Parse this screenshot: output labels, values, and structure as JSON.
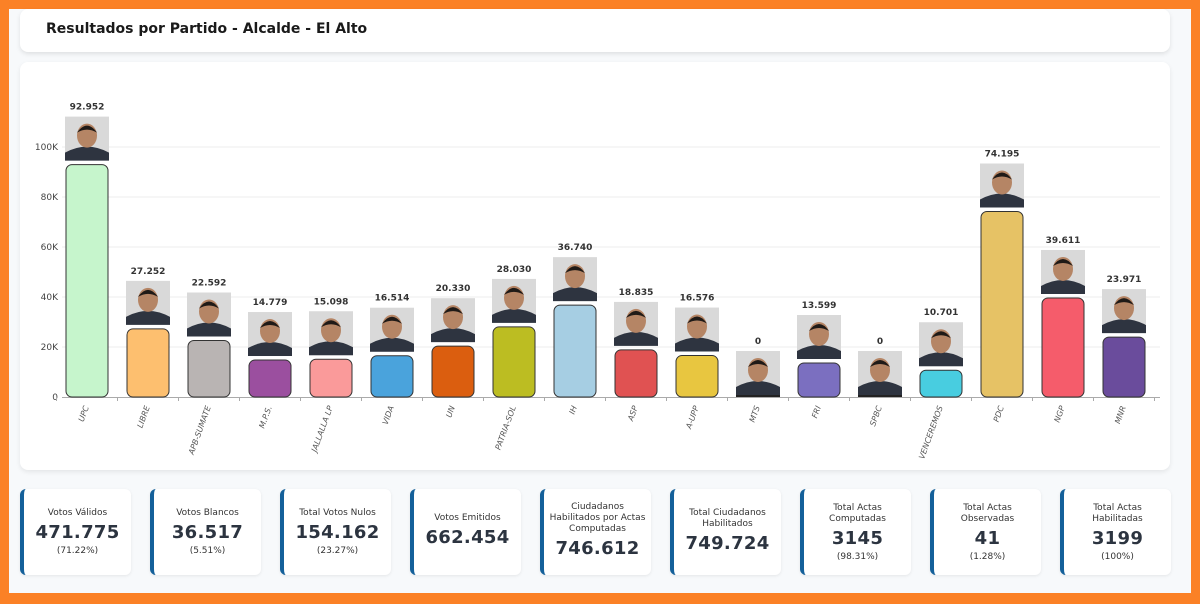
{
  "header": {
    "title": "Resultados por Partido - Alcalde - El Alto"
  },
  "colors": {
    "frame": "#fb8126",
    "stat_accent": "#14609a"
  },
  "chart_data": {
    "type": "bar",
    "title": "Resultados por Partido - Alcalde - El Alto",
    "xlabel": "",
    "ylabel": "",
    "ylim": [
      0,
      110000
    ],
    "yticks": [
      0,
      20000,
      40000,
      60000,
      80000,
      100000
    ],
    "ytick_labels": [
      "0",
      "20K",
      "40K",
      "60K",
      "80K",
      "100K"
    ],
    "grid": true,
    "legend": "none",
    "categories": [
      "UPC",
      "LIBRE",
      "APB-SUMATE",
      "M.P.S.",
      "JALLALLA LP",
      "VIDA",
      "UN",
      "PATRIA-SOL",
      "IH",
      "ASP",
      "A-UPP",
      "MTS",
      "FRI",
      "SPBC",
      "VENCEREMOS",
      "PDC",
      "NGP",
      "MNR"
    ],
    "values": [
      92952,
      27252,
      22592,
      14779,
      15098,
      16514,
      20330,
      28030,
      36740,
      18835,
      16576,
      0,
      13599,
      0,
      10701,
      74195,
      39611,
      23971
    ],
    "data_labels": [
      "92.952",
      "27.252",
      "22.592",
      "14.779",
      "15.098",
      "16.514",
      "20.330",
      "28.030",
      "36.740",
      "18.835",
      "16.576",
      "0",
      "13.599",
      "0",
      "10.701",
      "74.195",
      "39.611",
      "23.971"
    ],
    "bar_colors": [
      "#c6f5cc",
      "#fdbf6f",
      "#b9b4b3",
      "#9b4f9f",
      "#fa9a9a",
      "#4aa3dc",
      "#db5e0f",
      "#bcbd22",
      "#a6cee3",
      "#e05252",
      "#e8c640",
      "#dddddd",
      "#7b6fc0",
      "#dddddd",
      "#48cde0",
      "#e6c265",
      "#f55c6b",
      "#6a4c9c"
    ],
    "candidate_photos": true
  },
  "stats": [
    {
      "label": "Votos Válidos",
      "value": "471.775",
      "pct": "(71.22%)"
    },
    {
      "label": "Votos Blancos",
      "value": "36.517",
      "pct": "(5.51%)"
    },
    {
      "label": "Total Votos Nulos",
      "value": "154.162",
      "pct": "(23.27%)"
    },
    {
      "label": "Votos Emitidos",
      "value": "662.454",
      "pct": ""
    },
    {
      "label": "Ciudadanos Habilitados por Actas Computadas",
      "value": "746.612",
      "pct": ""
    },
    {
      "label": "Total Ciudadanos Habilitados",
      "value": "749.724",
      "pct": ""
    },
    {
      "label": "Total Actas Computadas",
      "value": "3145",
      "pct": "(98.31%)"
    },
    {
      "label": "Total Actas Observadas",
      "value": "41",
      "pct": "(1.28%)"
    },
    {
      "label": "Total Actas Habilitadas",
      "value": "3199",
      "pct": "(100%)"
    }
  ]
}
